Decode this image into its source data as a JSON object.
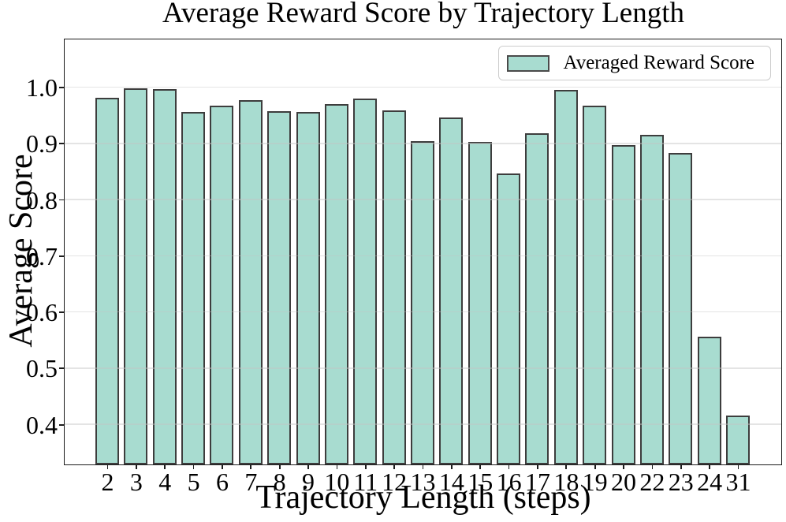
{
  "chart_data": {
    "type": "bar",
    "title": "Average Reward Score by Trajectory Length",
    "xlabel": "Trajectory Length (steps)",
    "ylabel": "Average Score",
    "legend_label": "Averaged Reward Score",
    "legend_position": "upper right",
    "grid": true,
    "categories": [
      "2",
      "3",
      "4",
      "5",
      "6",
      "7",
      "8",
      "9",
      "10",
      "11",
      "12",
      "13",
      "14",
      "15",
      "16",
      "17",
      "18",
      "19",
      "20",
      "22",
      "23",
      "24",
      "31"
    ],
    "values": [
      0.982,
      0.999,
      0.998,
      0.958,
      0.968,
      0.979,
      0.959,
      0.957,
      0.971,
      0.981,
      0.96,
      0.905,
      0.947,
      0.904,
      0.848,
      0.92,
      0.997,
      0.969,
      0.898,
      0.916,
      0.885,
      0.558,
      0.417
    ],
    "yticks": [
      0.4,
      0.5,
      0.6,
      0.7,
      0.8,
      0.9,
      1.0
    ],
    "ylim": [
      0.33,
      1.085
    ],
    "colors": {
      "bar_fill": "#a8dcd0",
      "bar_edge": "#3d3d3d",
      "spine": "#1c1c1c",
      "grid": "rgba(195,195,195,0.45)",
      "background": "#ffffff"
    }
  }
}
